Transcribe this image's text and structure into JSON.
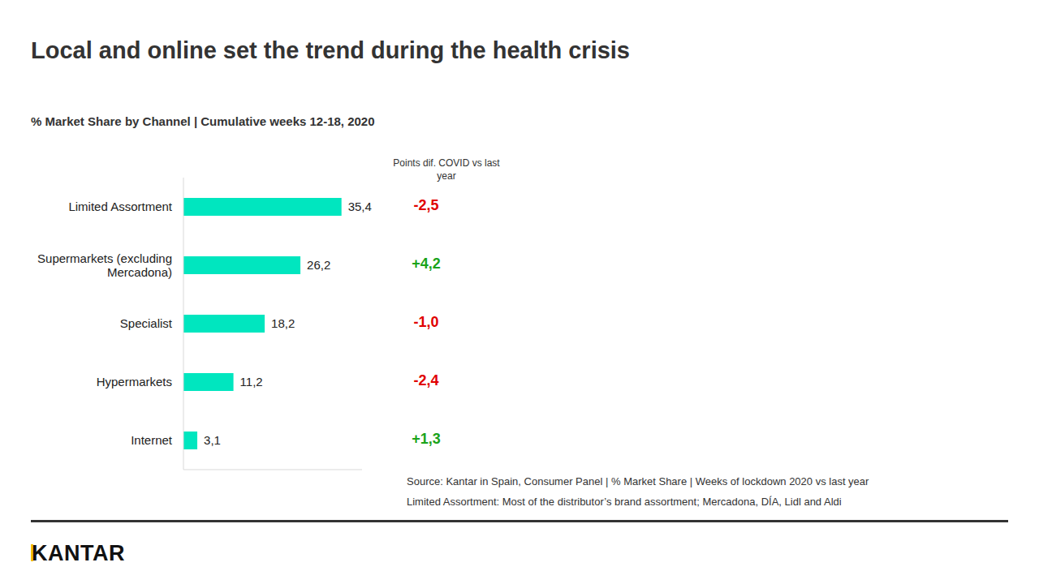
{
  "chart_data": {
    "type": "bar",
    "orientation": "horizontal",
    "title": "Local and online set the trend during the health crisis",
    "subtitle": "% Market Share by Channel | Cumulative weeks 12-18, 2020",
    "categories": [
      "Limited Assortment",
      "Supermarkets (excluding Mercadona)",
      "Specialist",
      "Hypermarkets",
      "Internet"
    ],
    "values": [
      35.4,
      26.2,
      18.2,
      11.2,
      3.1
    ],
    "value_labels": [
      "35,4",
      "26,2",
      "18,2",
      "11,2",
      "3,1"
    ],
    "color": "#00e6bf",
    "data_labels": true,
    "tick_labels": "y",
    "xlim": [
      0,
      40
    ],
    "difference_title": "Points dif. COVID vs last year",
    "differences": [
      -2.5,
      4.2,
      -1.0,
      -2.4,
      1.3
    ],
    "difference_labels": [
      "-2,5",
      "+4,2",
      "-1,0",
      "-2,4",
      "+1,3"
    ],
    "notes": [
      "Source: Kantar in Spain, Consumer Panel | % Market Share | Weeks of lockdown 2020 vs last year",
      "Limited Assortment: Most of the distributor’s brand assortment; Mercadona, DÍA, Lidl and Aldi"
    ],
    "logo": "KANTAR"
  }
}
